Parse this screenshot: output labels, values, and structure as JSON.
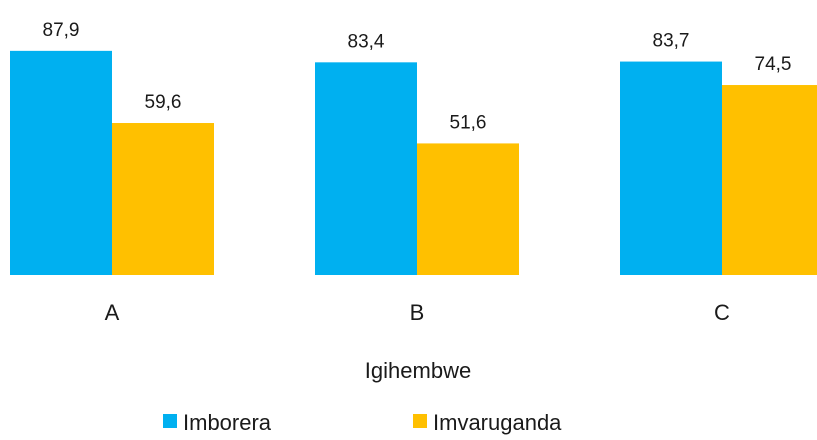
{
  "chart_data": {
    "type": "bar",
    "categories": [
      "A",
      "B",
      "C"
    ],
    "series": [
      {
        "name": "Imborera",
        "values": [
          87.9,
          83.4,
          83.7
        ],
        "color": "#00b0f0"
      },
      {
        "name": "Imvaruganda",
        "values": [
          59.6,
          51.6,
          74.5
        ],
        "color": "#ffc000"
      }
    ],
    "value_labels": [
      [
        "87,9",
        "83,4",
        "83,7"
      ],
      [
        "59,6",
        "51,6",
        "74,5"
      ]
    ],
    "xlabel": "Igihembwe",
    "ylabel": "",
    "ylim": [
      0,
      100
    ],
    "grid": false,
    "legend_position": "bottom"
  }
}
